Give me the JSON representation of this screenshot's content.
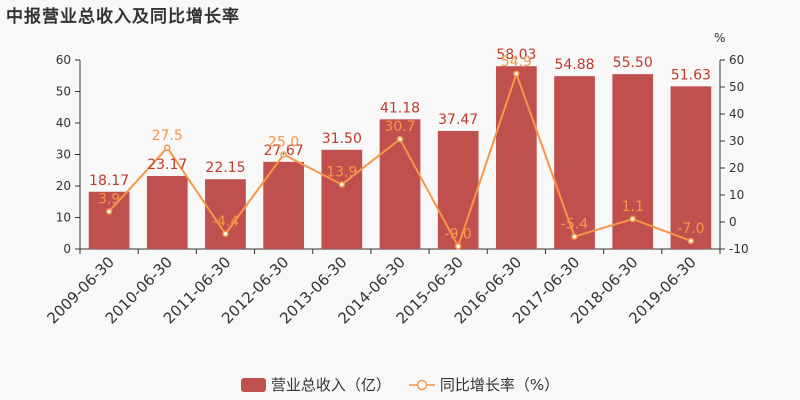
{
  "title": "中报营业总收入及同比增长率",
  "colors": {
    "bar": "#c0504d",
    "line": "#f79646",
    "bar_label": "#c0392b",
    "axis": "#333333",
    "grid": "#e6e6e6"
  },
  "chart_data": {
    "type": "bar",
    "title": "中报营业总收入及同比增长率",
    "categories": [
      "2009-06-30",
      "2010-06-30",
      "2011-06-30",
      "2012-06-30",
      "2013-06-30",
      "2014-06-30",
      "2015-06-30",
      "2016-06-30",
      "2017-06-30",
      "2018-06-30",
      "2019-06-30"
    ],
    "series": [
      {
        "name": "营业总收入（亿）",
        "type": "bar",
        "axis": "left",
        "values": [
          18.17,
          23.17,
          22.15,
          27.67,
          31.5,
          41.18,
          37.47,
          58.03,
          54.88,
          55.5,
          51.63
        ],
        "labels": [
          "18.17",
          "23.17",
          "22.15",
          "27.67",
          "31.50",
          "41.18",
          "37.47",
          "58.03",
          "54.88",
          "55.50",
          "51.63"
        ]
      },
      {
        "name": "同比增长率（%）",
        "type": "line",
        "axis": "right",
        "values": [
          3.9,
          27.5,
          -4.4,
          25.0,
          13.9,
          30.7,
          -9.0,
          54.9,
          -5.4,
          1.1,
          -7.0
        ],
        "labels": [
          "3.9",
          "27.5",
          "-4.4",
          "25.0",
          "13.9",
          "30.7",
          "-9.0",
          "54.9",
          "-5.4",
          "1.1",
          "-7.0"
        ]
      }
    ],
    "y_left": {
      "ylim": [
        0,
        60
      ],
      "ticks": [
        0,
        10,
        20,
        30,
        40,
        50,
        60
      ]
    },
    "y_right": {
      "label": "%",
      "ylim": [
        -10,
        60
      ],
      "ticks": [
        -10,
        0,
        10,
        20,
        30,
        40,
        50,
        60
      ]
    },
    "grid": false,
    "legend_position": "bottom"
  },
  "legend": {
    "bar_label": "营业总收入（亿）",
    "line_label": "同比增长率（%）"
  }
}
